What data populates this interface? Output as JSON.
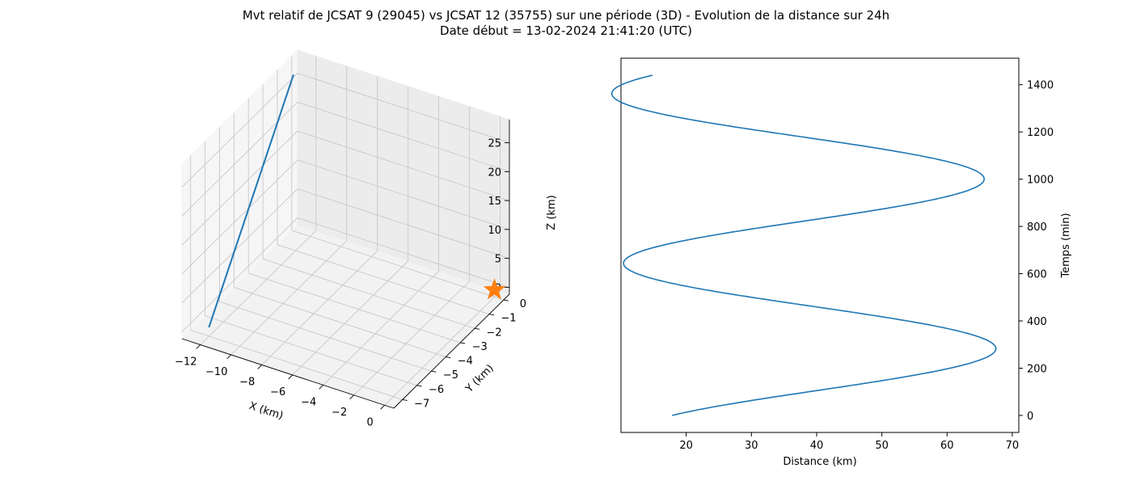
{
  "chart_data": [
    {
      "type": "line",
      "projection": "3d",
      "title": "Mvt relatif de JCSAT 9 (29045) vs JCSAT 12 (35755) sur une période (3D) - Evolution de la distance sur 24h",
      "subtitle": "Date début = 13-02-2024 21:41:20 (UTC)",
      "xlabel": "X (km)",
      "ylabel": "Y (km)",
      "zlabel": "Z (km)",
      "x_ticks": [
        -12,
        -10,
        -8,
        -6,
        -4,
        -2,
        0
      ],
      "y_ticks": [
        0,
        -1,
        -2,
        -3,
        -4,
        -5,
        -6,
        -7
      ],
      "z_ticks": [
        0,
        5,
        10,
        15,
        20,
        25
      ],
      "x_tick_labels": [
        "−12",
        "−10",
        "−8",
        "−6",
        "−4",
        "−2",
        "0"
      ],
      "y_tick_labels": [
        "0",
        "−1",
        "−2",
        "−3",
        "−4",
        "−5",
        "−6",
        "−7"
      ],
      "z_tick_labels": [
        "0",
        "5",
        "10",
        "15",
        "20",
        "25"
      ],
      "xlim": [
        -13.2,
        0.6
      ],
      "ylim": [
        -7.6,
        0.4
      ],
      "zlim": [
        -1.2,
        29
      ],
      "series": [
        {
          "color": "#1f77b4",
          "points": [
            {
              "x": -12.1,
              "y": -6.9,
              "z": 0
            },
            {
              "x": -12.9,
              "y": -0.2,
              "z": 26.5
            }
          ]
        }
      ],
      "marker": {
        "shape": "star",
        "color": "#ff7f0e",
        "x": 0,
        "y": 0,
        "z": 0
      },
      "grid": true
    },
    {
      "type": "line",
      "xlabel": "Distance (km)",
      "ylabel": "Temps (min)",
      "xlim": [
        10,
        71
      ],
      "ylim": [
        -72,
        1512
      ],
      "x_ticks": [
        20,
        30,
        40,
        50,
        60,
        70
      ],
      "y_ticks": [
        0,
        200,
        400,
        600,
        800,
        1000,
        1200,
        1400
      ],
      "y_axis_side": "right",
      "series": [
        {
          "color": "#1f77b4",
          "model": {
            "mean": 40.1,
            "amplitude": 28.1,
            "trend_per_min": -0.0025,
            "period_min": 718,
            "phase_min": -75
          },
          "t_range": [
            0,
            1440
          ]
        }
      ]
    }
  ]
}
